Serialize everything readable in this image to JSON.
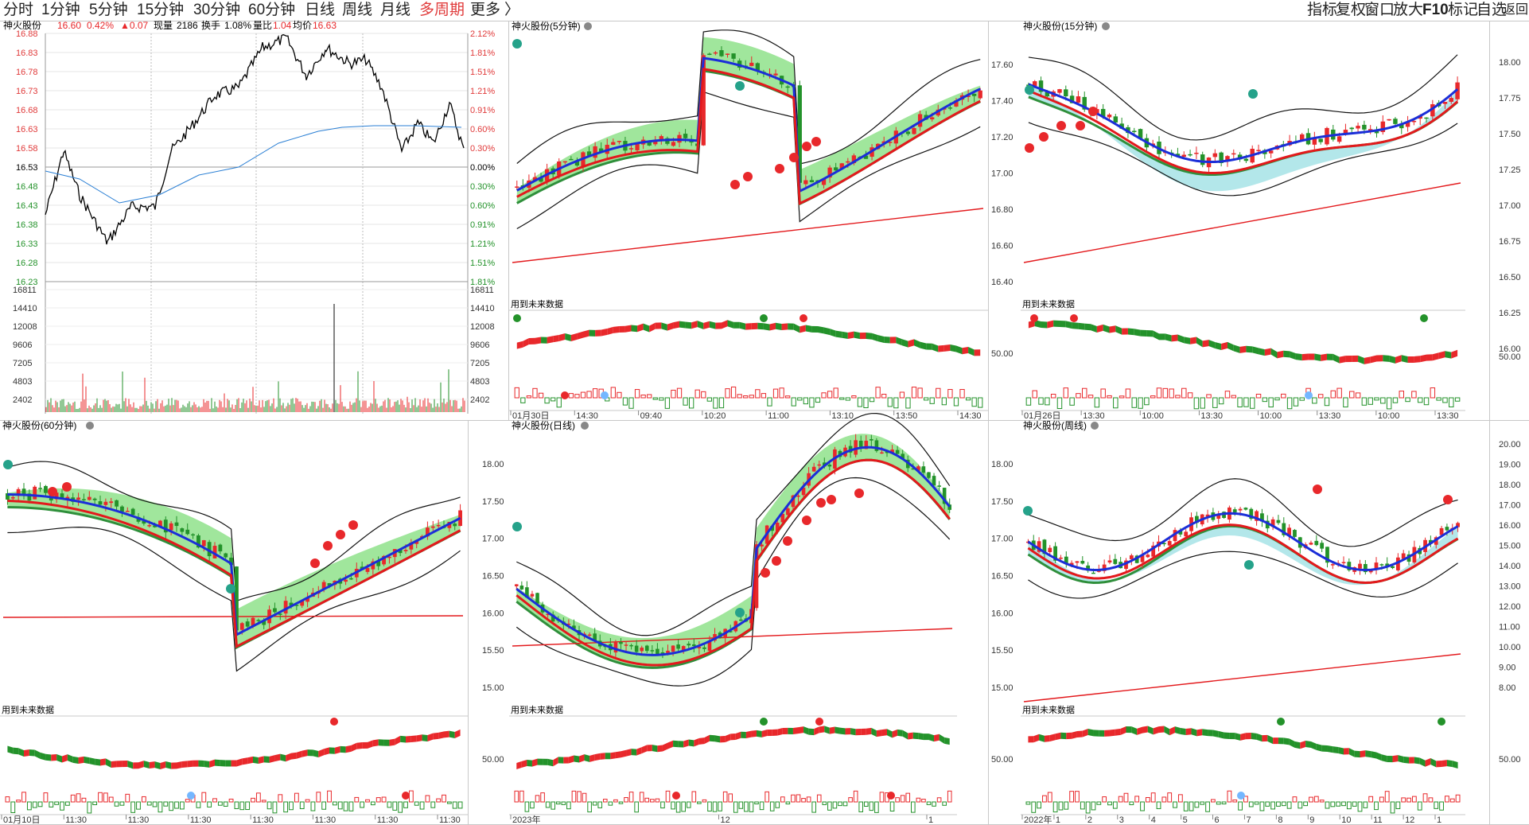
{
  "toolbar": {
    "left": [
      "分时",
      "1分钟",
      "5分钟",
      "15分钟",
      "30分钟",
      "60分钟",
      "日线",
      "周线",
      "月线",
      "多周期",
      "更多"
    ],
    "active": "多周期",
    "more_arrow": "〉",
    "right": [
      "指标",
      "复权",
      "窗口",
      "放大",
      "F10",
      "标记",
      "自选",
      "返回"
    ]
  },
  "colors": {
    "up": "#e8282b",
    "down": "#23922a",
    "ma_blue": "#1b2ed8",
    "ma_red": "#e3191c",
    "ma_green": "#2f8f3b",
    "ma_black": "#111111",
    "fill_green": "#8fe28b",
    "fill_cyan": "#a6e3e6",
    "avg_line": "#2a7fd4",
    "grid": "#d0d0d0",
    "axis_red": "#e03a3a",
    "axis_green": "#23922a"
  },
  "intraday": {
    "name": "神火股份",
    "price": "16.60",
    "pct": "0.42%",
    "change": "▲0.07",
    "vol_label": "现量",
    "vol": "2186",
    "turnover_label": "换手",
    "turnover": "1.08%",
    "ratio_label": "量比",
    "ratio": "1.04",
    "avg_label": "均价",
    "avg": "16.63",
    "price_ticks": [
      "16.88",
      "16.83",
      "16.78",
      "16.73",
      "16.68",
      "16.63",
      "16.58",
      "16.53",
      "16.48",
      "16.43",
      "16.38",
      "16.33",
      "16.28",
      "16.23"
    ],
    "pct_ticks": [
      "2.12%",
      "1.81%",
      "1.51%",
      "1.21%",
      "0.91%",
      "0.60%",
      "0.30%",
      "0.00%",
      "0.30%",
      "0.60%",
      "0.91%",
      "1.21%",
      "1.51%",
      "1.81%"
    ],
    "vol_ticks": [
      "16811",
      "14410",
      "12008",
      "9606",
      "7205",
      "4803",
      "2402"
    ]
  },
  "panels": [
    {
      "id": "p5",
      "title": "神火股份(5分钟)",
      "future_label": "用到未来数据",
      "y_ticks": [],
      "osc_tick": "",
      "x_labels": [
        "01月30日",
        "14:30",
        "09:40",
        "10:20",
        "11:00",
        "13:10",
        "13:50",
        "14:30"
      ]
    },
    {
      "id": "p15",
      "title": "神火股份(15分钟)",
      "future_label": "用到未来数据",
      "y_ticks": [
        "17.60",
        "17.40",
        "17.20",
        "17.00",
        "16.80",
        "16.60",
        "16.40"
      ],
      "osc_tick": "50.00",
      "x_labels": [
        "01月26日",
        "13:30",
        "10:00",
        "13:30",
        "10:00",
        "13:30",
        "10:00",
        "13:30"
      ]
    },
    {
      "id": "p60",
      "title": "神火股份(60分钟)",
      "future_label": "用到未来数据",
      "y_ticks": [],
      "osc_tick": "",
      "x_labels": [
        "01月10日",
        "11:30",
        "11:30",
        "11:30",
        "11:30",
        "11:30",
        "11:30",
        "11:30"
      ]
    },
    {
      "id": "pd",
      "title": "神火股份(日线)",
      "future_label": "用到未来数据",
      "y_ticks": [
        "18.00",
        "17.50",
        "17.00",
        "16.50",
        "16.00",
        "15.50",
        "15.00"
      ],
      "osc_tick": "50.00",
      "x_labels": [
        "2023年",
        "12",
        "1"
      ]
    },
    {
      "id": "pw",
      "title": "神火股份(周线)",
      "future_label": "用到未来数据",
      "y_ticks": [
        "18.00",
        "17.50",
        "17.00",
        "16.50",
        "16.00",
        "15.50",
        "15.00"
      ],
      "osc_tick": "50.00",
      "x_labels": [
        "2022年",
        "1",
        "2",
        "3",
        "4",
        "5",
        "6",
        "7",
        "8",
        "9",
        "10",
        "11",
        "12",
        "1"
      ]
    }
  ],
  "right_axis_top": [
    "18.00",
    "17.75",
    "17.50",
    "17.25",
    "17.00",
    "16.75",
    "16.50",
    "16.25",
    "16.00"
  ],
  "right_axis_bottom": [
    "20.00",
    "19.00",
    "18.00",
    "17.00",
    "16.00",
    "15.00",
    "14.00",
    "13.00",
    "12.00",
    "11.00",
    "10.00",
    "9.00",
    "8.00"
  ],
  "right_osc_top": "50.00",
  "right_osc_bottom": "50.00"
}
